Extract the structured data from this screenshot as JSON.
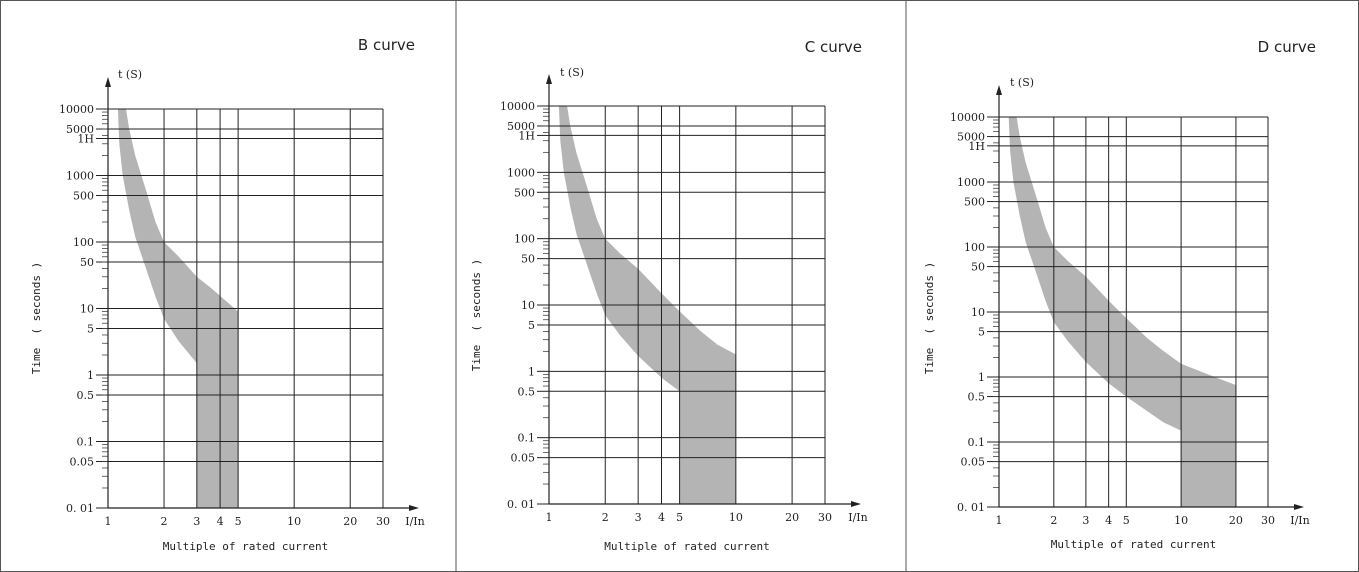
{
  "chart_data": [
    {
      "type": "area",
      "title": "B curve",
      "xlabel": "Multiple of rated current",
      "ylabel": "Time  ( seconds )",
      "x_unit_label": "I/In",
      "y_unit_label": "t (S)",
      "x_scale": "log",
      "y_scale": "log",
      "xlim": [
        1,
        30
      ],
      "ylim": [
        0.01,
        10000
      ],
      "x_ticks": [
        {
          "value": 1,
          "label": "1"
        },
        {
          "value": 2,
          "label": "2"
        },
        {
          "value": 3,
          "label": "3"
        },
        {
          "value": 4,
          "label": "4"
        },
        {
          "value": 5,
          "label": "5"
        },
        {
          "value": 10,
          "label": "10"
        },
        {
          "value": 20,
          "label": "20"
        },
        {
          "value": 30,
          "label": "30"
        }
      ],
      "y_ticks": [
        {
          "value": 10000,
          "label": "10000"
        },
        {
          "value": 5000,
          "label": "5000"
        },
        {
          "value": 3600,
          "label": "1H"
        },
        {
          "value": 1000,
          "label": "1000"
        },
        {
          "value": 500,
          "label": "500"
        },
        {
          "value": 100,
          "label": "100"
        },
        {
          "value": 50,
          "label": "50"
        },
        {
          "value": 10,
          "label": "10"
        },
        {
          "value": 5,
          "label": "5"
        },
        {
          "value": 1,
          "label": "1"
        },
        {
          "value": 0.5,
          "label": "0.5"
        },
        {
          "value": 0.1,
          "label": "0.1"
        },
        {
          "value": 0.05,
          "label": "0.05"
        },
        {
          "value": 0.01,
          "label": "0. 01"
        }
      ],
      "grid": true,
      "band_color": "#b4b4b4",
      "upper_boundary": {
        "x": [
          1.25,
          1.3,
          1.4,
          1.6,
          1.8,
          2,
          2.4,
          3,
          3.6,
          4.3,
          5
        ],
        "y": [
          10000,
          5000,
          2000,
          600,
          200,
          100,
          60,
          30,
          20,
          13,
          9
        ]
      },
      "lower_boundary": {
        "x": [
          1.13,
          1.15,
          1.2,
          1.3,
          1.4,
          1.6,
          1.8,
          2,
          2.4,
          3
        ],
        "y": [
          10000,
          3000,
          1000,
          300,
          120,
          40,
          15,
          7,
          3.2,
          1.5
        ]
      },
      "instantaneous_region": {
        "x_from": 3,
        "x_to": 5,
        "y_bottom": 0.01
      }
    },
    {
      "type": "area",
      "title": "C curve",
      "xlabel": "Multiple of rated current",
      "ylabel": "Time  ( seconds )",
      "x_unit_label": "I/In",
      "y_unit_label": "t (S)",
      "x_scale": "log",
      "y_scale": "log",
      "xlim": [
        1,
        30
      ],
      "ylim": [
        0.01,
        10000
      ],
      "x_ticks": [
        {
          "value": 1,
          "label": "1"
        },
        {
          "value": 2,
          "label": "2"
        },
        {
          "value": 3,
          "label": "3"
        },
        {
          "value": 4,
          "label": "4"
        },
        {
          "value": 5,
          "label": "5"
        },
        {
          "value": 10,
          "label": "10"
        },
        {
          "value": 20,
          "label": "20"
        },
        {
          "value": 30,
          "label": "30"
        }
      ],
      "y_ticks": [
        {
          "value": 10000,
          "label": "10000"
        },
        {
          "value": 5000,
          "label": "5000"
        },
        {
          "value": 3600,
          "label": "1H"
        },
        {
          "value": 1000,
          "label": "1000"
        },
        {
          "value": 500,
          "label": "500"
        },
        {
          "value": 100,
          "label": "100"
        },
        {
          "value": 50,
          "label": "50"
        },
        {
          "value": 10,
          "label": "10"
        },
        {
          "value": 5,
          "label": "5"
        },
        {
          "value": 1,
          "label": "1"
        },
        {
          "value": 0.5,
          "label": "0.5"
        },
        {
          "value": 0.1,
          "label": "0.1"
        },
        {
          "value": 0.05,
          "label": "0.05"
        },
        {
          "value": 0.01,
          "label": "0. 01"
        }
      ],
      "grid": true,
      "band_color": "#b4b4b4",
      "upper_boundary": {
        "x": [
          1.25,
          1.3,
          1.4,
          1.6,
          1.8,
          2,
          2.4,
          3,
          4,
          5,
          6.5,
          8,
          10
        ],
        "y": [
          10000,
          5000,
          2000,
          600,
          200,
          100,
          60,
          35,
          15,
          8,
          4,
          2.5,
          1.8
        ]
      },
      "lower_boundary": {
        "x": [
          1.13,
          1.15,
          1.2,
          1.3,
          1.4,
          1.6,
          1.8,
          2,
          2.4,
          3,
          4,
          5
        ],
        "y": [
          10000,
          3000,
          1000,
          300,
          120,
          40,
          15,
          7,
          3.5,
          1.7,
          0.8,
          0.5
        ]
      },
      "instantaneous_region": {
        "x_from": 5,
        "x_to": 10,
        "y_bottom": 0.01
      }
    },
    {
      "type": "area",
      "title": "D curve",
      "xlabel": "Multiple of rated current",
      "ylabel": "Time  ( seconds )",
      "x_unit_label": "I/In",
      "y_unit_label": "t (S)",
      "x_scale": "log",
      "y_scale": "log",
      "xlim": [
        1,
        30
      ],
      "ylim": [
        0.01,
        10000
      ],
      "x_ticks": [
        {
          "value": 1,
          "label": "1"
        },
        {
          "value": 2,
          "label": "2"
        },
        {
          "value": 3,
          "label": "3"
        },
        {
          "value": 4,
          "label": "4"
        },
        {
          "value": 5,
          "label": "5"
        },
        {
          "value": 10,
          "label": "10"
        },
        {
          "value": 20,
          "label": "20"
        },
        {
          "value": 30,
          "label": "30"
        }
      ],
      "y_ticks": [
        {
          "value": 10000,
          "label": "10000"
        },
        {
          "value": 5000,
          "label": "5000"
        },
        {
          "value": 3600,
          "label": "1H"
        },
        {
          "value": 1000,
          "label": "1000"
        },
        {
          "value": 500,
          "label": "500"
        },
        {
          "value": 100,
          "label": "100"
        },
        {
          "value": 50,
          "label": "50"
        },
        {
          "value": 10,
          "label": "10"
        },
        {
          "value": 5,
          "label": "5"
        },
        {
          "value": 1,
          "label": "1"
        },
        {
          "value": 0.5,
          "label": "0.5"
        },
        {
          "value": 0.1,
          "label": "0.1"
        },
        {
          "value": 0.05,
          "label": "0.05"
        },
        {
          "value": 0.01,
          "label": "0. 01"
        }
      ],
      "grid": true,
      "band_color": "#b4b4b4",
      "upper_boundary": {
        "x": [
          1.25,
          1.3,
          1.4,
          1.6,
          1.8,
          2,
          2.4,
          3,
          4,
          5,
          6.5,
          8,
          10,
          14,
          20
        ],
        "y": [
          10000,
          5000,
          2000,
          600,
          200,
          100,
          60,
          35,
          15,
          8,
          4,
          2.5,
          1.6,
          1.1,
          0.75
        ]
      },
      "lower_boundary": {
        "x": [
          1.13,
          1.15,
          1.2,
          1.3,
          1.4,
          1.6,
          1.8,
          2,
          2.4,
          3,
          4,
          5,
          6.5,
          8,
          10
        ],
        "y": [
          10000,
          3000,
          1000,
          300,
          120,
          40,
          15,
          7,
          3.5,
          1.7,
          0.8,
          0.5,
          0.3,
          0.2,
          0.15
        ]
      },
      "instantaneous_region": {
        "x_from": 10,
        "x_to": 20,
        "y_bottom": 0.01
      }
    }
  ]
}
